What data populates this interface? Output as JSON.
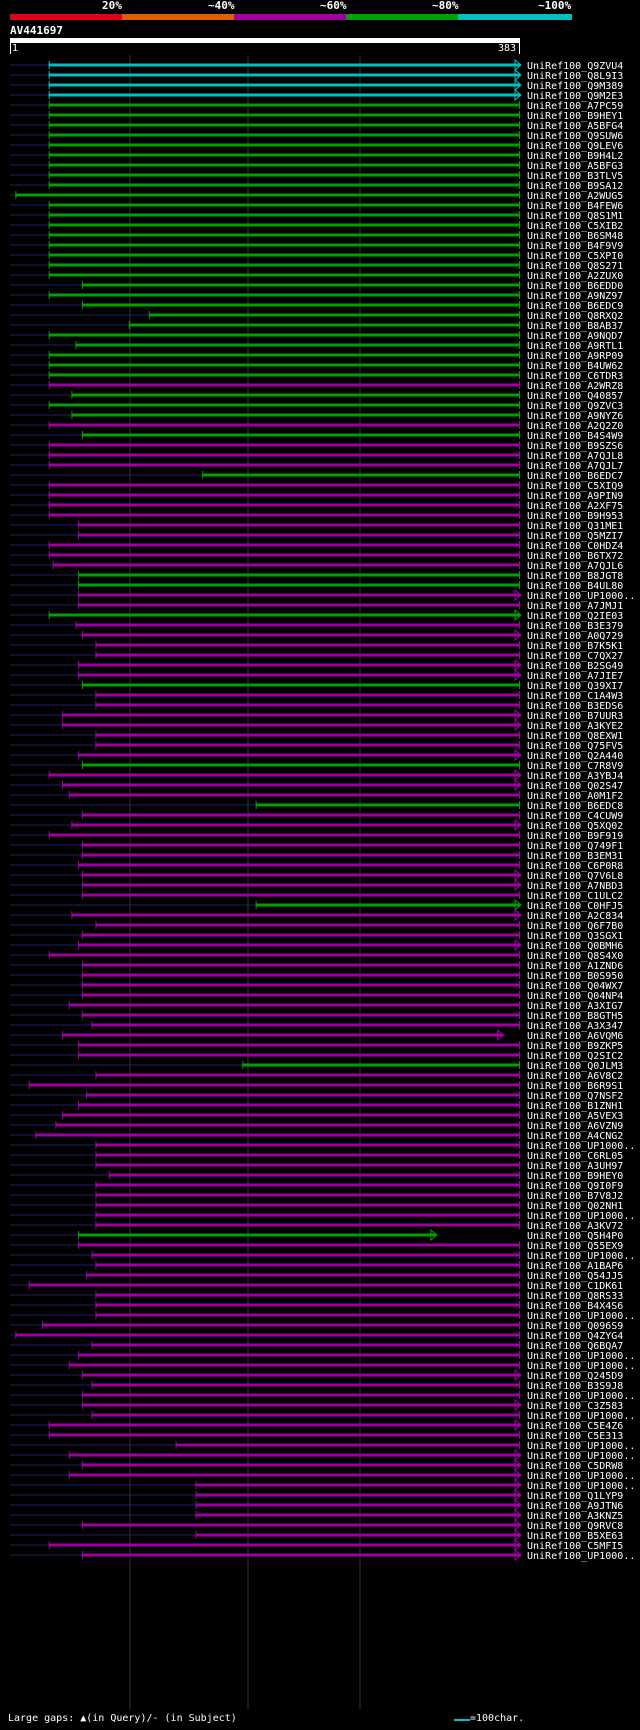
{
  "scale": {
    "labels": [
      "20%",
      "~40%",
      "~60%",
      "~80%",
      "~100%"
    ],
    "colors": [
      "#e0001a",
      "#e06000",
      "#a000a0",
      "#00a000",
      "#00c0c0"
    ]
  },
  "query": {
    "name": "AV441697",
    "start": "1",
    "end": "383",
    "length": 383
  },
  "hits": [
    {
      "name": "UniRef100_Q9ZVU4",
      "s": 30,
      "e": 383,
      "cls": 4,
      "arrow": 1
    },
    {
      "name": "UniRef100_Q8L9I3",
      "s": 30,
      "e": 383,
      "cls": 4,
      "arrow": 1
    },
    {
      "name": "UniRef100_Q9M389",
      "s": 30,
      "e": 383,
      "cls": 4,
      "arrow": 1
    },
    {
      "name": "UniRef100_Q9M2E3",
      "s": 30,
      "e": 383,
      "cls": 4,
      "arrow": 1
    },
    {
      "name": "UniRef100_A7PC59",
      "s": 30,
      "e": 383,
      "cls": 3,
      "arrow": 0
    },
    {
      "name": "UniRef100_B9HEY1",
      "s": 30,
      "e": 383,
      "cls": 3,
      "arrow": 0
    },
    {
      "name": "UniRef100_A5BFG4",
      "s": 30,
      "e": 383,
      "cls": 3,
      "arrow": 0
    },
    {
      "name": "UniRef100_Q9SUW6",
      "s": 30,
      "e": 383,
      "cls": 3,
      "arrow": 0
    },
    {
      "name": "UniRef100_Q9LEV6",
      "s": 30,
      "e": 383,
      "cls": 3,
      "arrow": 0
    },
    {
      "name": "UniRef100_B9H4L2",
      "s": 30,
      "e": 383,
      "cls": 3,
      "arrow": 0
    },
    {
      "name": "UniRef100_A5BFG3",
      "s": 30,
      "e": 383,
      "cls": 3,
      "arrow": 0
    },
    {
      "name": "UniRef100_B3TLV5",
      "s": 30,
      "e": 383,
      "cls": 3,
      "arrow": 0
    },
    {
      "name": "UniRef100_B9SA12",
      "s": 30,
      "e": 383,
      "cls": 3,
      "arrow": 0
    },
    {
      "name": "UniRef100_A2WUG5",
      "s": 5,
      "e": 383,
      "cls": 3,
      "arrow": 0
    },
    {
      "name": "UniRef100_B4FEW6",
      "s": 30,
      "e": 383,
      "cls": 3,
      "arrow": 0
    },
    {
      "name": "UniRef100_Q8S1M1",
      "s": 30,
      "e": 383,
      "cls": 3,
      "arrow": 0
    },
    {
      "name": "UniRef100_C5XIB2",
      "s": 30,
      "e": 383,
      "cls": 3,
      "arrow": 0
    },
    {
      "name": "UniRef100_B6SM48",
      "s": 30,
      "e": 383,
      "cls": 3,
      "arrow": 0
    },
    {
      "name": "UniRef100_B4F9V9",
      "s": 30,
      "e": 383,
      "cls": 3,
      "arrow": 0
    },
    {
      "name": "UniRef100_C5XPI0",
      "s": 30,
      "e": 383,
      "cls": 3,
      "arrow": 0
    },
    {
      "name": "UniRef100_Q8S271",
      "s": 30,
      "e": 383,
      "cls": 3,
      "arrow": 0
    },
    {
      "name": "UniRef100_A2ZUX0",
      "s": 30,
      "e": 383,
      "cls": 3,
      "arrow": 0
    },
    {
      "name": "UniRef100_B6EDD0",
      "s": 55,
      "e": 383,
      "cls": 3,
      "arrow": 0
    },
    {
      "name": "UniRef100_A9NZ97",
      "s": 30,
      "e": 383,
      "cls": 3,
      "arrow": 0
    },
    {
      "name": "UniRef100_B6EDC9",
      "s": 55,
      "e": 383,
      "cls": 3,
      "arrow": 0
    },
    {
      "name": "UniRef100_Q8RXQ2",
      "s": 105,
      "e": 383,
      "cls": 3,
      "arrow": 0
    },
    {
      "name": "UniRef100_B8AB37",
      "s": 90,
      "e": 383,
      "cls": 3,
      "arrow": 0
    },
    {
      "name": "UniRef100_A9NQD7",
      "s": 30,
      "e": 383,
      "cls": 3,
      "arrow": 0
    },
    {
      "name": "UniRef100_A9RTL1",
      "s": 50,
      "e": 383,
      "cls": 3,
      "arrow": 0
    },
    {
      "name": "UniRef100_A9RP09",
      "s": 30,
      "e": 383,
      "cls": 3,
      "arrow": 0
    },
    {
      "name": "UniRef100_B4UW62",
      "s": 30,
      "e": 383,
      "cls": 3,
      "arrow": 0
    },
    {
      "name": "UniRef100_C6TDR3",
      "s": 30,
      "e": 383,
      "cls": 3,
      "arrow": 0
    },
    {
      "name": "UniRef100_A2WRZ8",
      "s": 30,
      "e": 383,
      "cls": 2,
      "arrow": 0
    },
    {
      "name": "UniRef100_Q40857",
      "s": 47,
      "e": 383,
      "cls": 3,
      "arrow": 0
    },
    {
      "name": "UniRef100_Q9ZVC3",
      "s": 30,
      "e": 383,
      "cls": 3,
      "arrow": 0
    },
    {
      "name": "UniRef100_A9NYZ6",
      "s": 47,
      "e": 383,
      "cls": 3,
      "arrow": 0
    },
    {
      "name": "UniRef100_A2Q2Z0",
      "s": 30,
      "e": 383,
      "cls": 2,
      "arrow": 0
    },
    {
      "name": "UniRef100_B4S4W9",
      "s": 55,
      "e": 383,
      "cls": 3,
      "arrow": 0
    },
    {
      "name": "UniRef100_B9SZS6",
      "s": 30,
      "e": 383,
      "cls": 2,
      "arrow": 0
    },
    {
      "name": "UniRef100_A7QJL8",
      "s": 30,
      "e": 383,
      "cls": 2,
      "arrow": 0
    },
    {
      "name": "UniRef100_A7QJL7",
      "s": 30,
      "e": 383,
      "cls": 2,
      "arrow": 0
    },
    {
      "name": "UniRef100_B6EDC7",
      "s": 145,
      "e": 383,
      "cls": 3,
      "arrow": 0
    },
    {
      "name": "UniRef100_C5XIQ9",
      "s": 30,
      "e": 383,
      "cls": 2,
      "arrow": 0
    },
    {
      "name": "UniRef100_A9PIN9",
      "s": 30,
      "e": 383,
      "cls": 2,
      "arrow": 0
    },
    {
      "name": "UniRef100_A2XF75",
      "s": 30,
      "e": 383,
      "cls": 2,
      "arrow": 0
    },
    {
      "name": "UniRef100_B9H953",
      "s": 30,
      "e": 383,
      "cls": 2,
      "arrow": 0
    },
    {
      "name": "UniRef100_Q31ME1",
      "s": 52,
      "e": 383,
      "cls": 2,
      "arrow": 0
    },
    {
      "name": "UniRef100_Q5MZI7",
      "s": 52,
      "e": 383,
      "cls": 2,
      "arrow": 0
    },
    {
      "name": "UniRef100_C0HDZ4",
      "s": 30,
      "e": 383,
      "cls": 2,
      "arrow": 0
    },
    {
      "name": "UniRef100_B6TX72",
      "s": 30,
      "e": 383,
      "cls": 2,
      "arrow": 0
    },
    {
      "name": "UniRef100_A7QJL6",
      "s": 33,
      "e": 383,
      "cls": 2,
      "arrow": 0
    },
    {
      "name": "UniRef100_B8JGT8",
      "s": 52,
      "e": 383,
      "cls": 3,
      "arrow": 0
    },
    {
      "name": "UniRef100_B4UL80",
      "s": 52,
      "e": 383,
      "cls": 3,
      "arrow": 0
    },
    {
      "name": "UniRef100_UP1000..",
      "s": 52,
      "e": 383,
      "cls": 2,
      "arrow": 1
    },
    {
      "name": "UniRef100_A7JMJ1",
      "s": 52,
      "e": 383,
      "cls": 2,
      "arrow": 0
    },
    {
      "name": "UniRef100_Q2IE03",
      "s": 30,
      "e": 383,
      "cls": 3,
      "arrow": 1
    },
    {
      "name": "UniRef100_B3E379",
      "s": 50,
      "e": 383,
      "cls": 2,
      "arrow": 0
    },
    {
      "name": "UniRef100_A0Q729",
      "s": 55,
      "e": 383,
      "cls": 2,
      "arrow": 1
    },
    {
      "name": "UniRef100_B7K5K1",
      "s": 65,
      "e": 383,
      "cls": 2,
      "arrow": 0
    },
    {
      "name": "UniRef100_C7QX27",
      "s": 65,
      "e": 383,
      "cls": 2,
      "arrow": 0
    },
    {
      "name": "UniRef100_B2SG49",
      "s": 52,
      "e": 383,
      "cls": 2,
      "arrow": 1
    },
    {
      "name": "UniRef100_A7JIE7",
      "s": 52,
      "e": 383,
      "cls": 2,
      "arrow": 1
    },
    {
      "name": "UniRef100_Q39XI7",
      "s": 55,
      "e": 383,
      "cls": 3,
      "arrow": 0
    },
    {
      "name": "UniRef100_C1A4W3",
      "s": 65,
      "e": 383,
      "cls": 2,
      "arrow": 0
    },
    {
      "name": "UniRef100_B3EDS6",
      "s": 65,
      "e": 383,
      "cls": 2,
      "arrow": 0
    },
    {
      "name": "UniRef100_B7UUR3",
      "s": 40,
      "e": 383,
      "cls": 2,
      "arrow": 1
    },
    {
      "name": "UniRef100_A3KYE2",
      "s": 40,
      "e": 383,
      "cls": 2,
      "arrow": 1
    },
    {
      "name": "UniRef100_Q8EXW1",
      "s": 65,
      "e": 383,
      "cls": 2,
      "arrow": 0
    },
    {
      "name": "UniRef100_Q75FV5",
      "s": 65,
      "e": 383,
      "cls": 2,
      "arrow": 0
    },
    {
      "name": "UniRef100_Q2A440",
      "s": 52,
      "e": 383,
      "cls": 2,
      "arrow": 1
    },
    {
      "name": "UniRef100_C7R8V9",
      "s": 55,
      "e": 383,
      "cls": 3,
      "arrow": 0
    },
    {
      "name": "UniRef100_A3YBJ4",
      "s": 30,
      "e": 383,
      "cls": 2,
      "arrow": 1
    },
    {
      "name": "UniRef100_Q02S47",
      "s": 40,
      "e": 383,
      "cls": 2,
      "arrow": 1
    },
    {
      "name": "UniRef100_A0M1F2",
      "s": 45,
      "e": 383,
      "cls": 2,
      "arrow": 0
    },
    {
      "name": "UniRef100_B6EDC8",
      "s": 185,
      "e": 383,
      "cls": 3,
      "arrow": 0
    },
    {
      "name": "UniRef100_C4CUW9",
      "s": 55,
      "e": 383,
      "cls": 2,
      "arrow": 0
    },
    {
      "name": "UniRef100_Q5XQ02",
      "s": 47,
      "e": 383,
      "cls": 2,
      "arrow": 1
    },
    {
      "name": "UniRef100_B9F919",
      "s": 30,
      "e": 383,
      "cls": 2,
      "arrow": 0
    },
    {
      "name": "UniRef100_Q749F1",
      "s": 55,
      "e": 383,
      "cls": 2,
      "arrow": 0
    },
    {
      "name": "UniRef100_B3EM31",
      "s": 55,
      "e": 383,
      "cls": 2,
      "arrow": 0
    },
    {
      "name": "UniRef100_C6P0R8",
      "s": 52,
      "e": 383,
      "cls": 2,
      "arrow": 0
    },
    {
      "name": "UniRef100_Q7V6L8",
      "s": 55,
      "e": 383,
      "cls": 2,
      "arrow": 1
    },
    {
      "name": "UniRef100_A7NBD3",
      "s": 55,
      "e": 383,
      "cls": 2,
      "arrow": 1
    },
    {
      "name": "UniRef100_C1ULC2",
      "s": 55,
      "e": 383,
      "cls": 2,
      "arrow": 0
    },
    {
      "name": "UniRef100_C0HFJ5",
      "s": 185,
      "e": 383,
      "cls": 3,
      "arrow": 1
    },
    {
      "name": "UniRef100_A2C834",
      "s": 47,
      "e": 383,
      "cls": 2,
      "arrow": 1
    },
    {
      "name": "UniRef100_Q6F7B0",
      "s": 65,
      "e": 383,
      "cls": 2,
      "arrow": 0
    },
    {
      "name": "UniRef100_Q3SGX1",
      "s": 55,
      "e": 383,
      "cls": 2,
      "arrow": 0
    },
    {
      "name": "UniRef100_Q0BMH6",
      "s": 52,
      "e": 383,
      "cls": 2,
      "arrow": 1
    },
    {
      "name": "UniRef100_Q8S4X0",
      "s": 30,
      "e": 383,
      "cls": 2,
      "arrow": 0
    },
    {
      "name": "UniRef100_A1ZND6",
      "s": 55,
      "e": 383,
      "cls": 2,
      "arrow": 0
    },
    {
      "name": "UniRef100_B0S950",
      "s": 55,
      "e": 383,
      "cls": 2,
      "arrow": 0
    },
    {
      "name": "UniRef100_Q04WX7",
      "s": 55,
      "e": 383,
      "cls": 2,
      "arrow": 0
    },
    {
      "name": "UniRef100_Q04NP4",
      "s": 55,
      "e": 383,
      "cls": 2,
      "arrow": 0
    },
    {
      "name": "UniRef100_A3XIG7",
      "s": 45,
      "e": 383,
      "cls": 2,
      "arrow": 0
    },
    {
      "name": "UniRef100_B8GTH5",
      "s": 55,
      "e": 383,
      "cls": 2,
      "arrow": 0
    },
    {
      "name": "UniRef100_A3X347",
      "s": 62,
      "e": 383,
      "cls": 2,
      "arrow": 0
    },
    {
      "name": "UniRef100_A6VQM6",
      "s": 40,
      "e": 370,
      "cls": 2,
      "arrow": 1
    },
    {
      "name": "UniRef100_B9ZKP5",
      "s": 52,
      "e": 383,
      "cls": 2,
      "arrow": 0
    },
    {
      "name": "UniRef100_Q2SIC2",
      "s": 52,
      "e": 383,
      "cls": 2,
      "arrow": 0
    },
    {
      "name": "UniRef100_Q0JLM3",
      "s": 175,
      "e": 383,
      "cls": 3,
      "arrow": 0
    },
    {
      "name": "UniRef100_A6V8C2",
      "s": 65,
      "e": 383,
      "cls": 2,
      "arrow": 0
    },
    {
      "name": "UniRef100_B6R9S1",
      "s": 15,
      "e": 383,
      "cls": 2,
      "arrow": 0
    },
    {
      "name": "UniRef100_Q7NSF2",
      "s": 58,
      "e": 383,
      "cls": 2,
      "arrow": 0
    },
    {
      "name": "UniRef100_B1ZNH1",
      "s": 52,
      "e": 383,
      "cls": 2,
      "arrow": 0
    },
    {
      "name": "UniRef100_A5VEX3",
      "s": 40,
      "e": 383,
      "cls": 2,
      "arrow": 0
    },
    {
      "name": "UniRef100_A6VZN9",
      "s": 35,
      "e": 383,
      "cls": 2,
      "arrow": 0
    },
    {
      "name": "UniRef100_A4CNG2",
      "s": 20,
      "e": 383,
      "cls": 2,
      "arrow": 0
    },
    {
      "name": "UniRef100_UP1000..",
      "s": 65,
      "e": 383,
      "cls": 2,
      "arrow": 0
    },
    {
      "name": "UniRef100_C6RL05",
      "s": 65,
      "e": 383,
      "cls": 2,
      "arrow": 0
    },
    {
      "name": "UniRef100_A3UH97",
      "s": 65,
      "e": 383,
      "cls": 2,
      "arrow": 0
    },
    {
      "name": "UniRef100_B9HEY0",
      "s": 75,
      "e": 383,
      "cls": 2,
      "arrow": 0
    },
    {
      "name": "UniRef100_Q9I0F9",
      "s": 65,
      "e": 383,
      "cls": 2,
      "arrow": 0
    },
    {
      "name": "UniRef100_B7V8J2",
      "s": 65,
      "e": 383,
      "cls": 2,
      "arrow": 0
    },
    {
      "name": "UniRef100_Q02NH1",
      "s": 65,
      "e": 383,
      "cls": 2,
      "arrow": 0
    },
    {
      "name": "UniRef100_UP1000..",
      "s": 65,
      "e": 383,
      "cls": 2,
      "arrow": 0
    },
    {
      "name": "UniRef100_A3KV72",
      "s": 65,
      "e": 383,
      "cls": 2,
      "arrow": 0
    },
    {
      "name": "UniRef100_Q5H4P0",
      "s": 52,
      "e": 320,
      "cls": 3,
      "arrow": 1
    },
    {
      "name": "UniRef100_Q55EX9",
      "s": 52,
      "e": 383,
      "cls": 2,
      "arrow": 0
    },
    {
      "name": "UniRef100_UP1000..",
      "s": 62,
      "e": 383,
      "cls": 2,
      "arrow": 0
    },
    {
      "name": "UniRef100_A1BAP6",
      "s": 65,
      "e": 383,
      "cls": 2,
      "arrow": 0
    },
    {
      "name": "UniRef100_Q54JJ5",
      "s": 58,
      "e": 383,
      "cls": 2,
      "arrow": 0
    },
    {
      "name": "UniRef100_C1DK61",
      "s": 15,
      "e": 383,
      "cls": 2,
      "arrow": 0
    },
    {
      "name": "UniRef100_Q8RS33",
      "s": 65,
      "e": 383,
      "cls": 2,
      "arrow": 0
    },
    {
      "name": "UniRef100_B4X4S6",
      "s": 65,
      "e": 383,
      "cls": 2,
      "arrow": 0
    },
    {
      "name": "UniRef100_UP1000..",
      "s": 65,
      "e": 383,
      "cls": 2,
      "arrow": 0
    },
    {
      "name": "UniRef100_Q096S9",
      "s": 25,
      "e": 383,
      "cls": 2,
      "arrow": 0
    },
    {
      "name": "UniRef100_Q4ZYG4",
      "s": 5,
      "e": 383,
      "cls": 2,
      "arrow": 0
    },
    {
      "name": "UniRef100_Q6BQA7",
      "s": 62,
      "e": 383,
      "cls": 2,
      "arrow": 0
    },
    {
      "name": "UniRef100_UP1000..",
      "s": 52,
      "e": 383,
      "cls": 2,
      "arrow": 0
    },
    {
      "name": "UniRef100_UP1000..",
      "s": 45,
      "e": 383,
      "cls": 2,
      "arrow": 0
    },
    {
      "name": "UniRef100_Q245D9",
      "s": 55,
      "e": 383,
      "cls": 2,
      "arrow": 1
    },
    {
      "name": "UniRef100_B3S9J8",
      "s": 62,
      "e": 383,
      "cls": 2,
      "arrow": 0
    },
    {
      "name": "UniRef100_UP1000..",
      "s": 55,
      "e": 383,
      "cls": 2,
      "arrow": 0
    },
    {
      "name": "UniRef100_C3Z583",
      "s": 55,
      "e": 383,
      "cls": 2,
      "arrow": 1
    },
    {
      "name": "UniRef100_UP1000..",
      "s": 62,
      "e": 383,
      "cls": 2,
      "arrow": 0
    },
    {
      "name": "UniRef100_C5E4Z6",
      "s": 30,
      "e": 383,
      "cls": 2,
      "arrow": 1
    },
    {
      "name": "UniRef100_C5E313",
      "s": 30,
      "e": 383,
      "cls": 2,
      "arrow": 0
    },
    {
      "name": "UniRef100_UP1000..",
      "s": 125,
      "e": 383,
      "cls": 2,
      "arrow": 0
    },
    {
      "name": "UniRef100_UP1000..",
      "s": 45,
      "e": 383,
      "cls": 2,
      "arrow": 1
    },
    {
      "name": "UniRef100_C5DRW8",
      "s": 55,
      "e": 383,
      "cls": 2,
      "arrow": 1
    },
    {
      "name": "UniRef100_UP1000..",
      "s": 45,
      "e": 383,
      "cls": 2,
      "arrow": 1
    },
    {
      "name": "UniRef100_UP1000..",
      "s": 140,
      "e": 383,
      "cls": 2,
      "arrow": 1
    },
    {
      "name": "UniRef100_Q1LYP9",
      "s": 140,
      "e": 383,
      "cls": 2,
      "arrow": 1
    },
    {
      "name": "UniRef100_A9JTN6",
      "s": 140,
      "e": 383,
      "cls": 2,
      "arrow": 1
    },
    {
      "name": "UniRef100_A3KNZ5",
      "s": 140,
      "e": 383,
      "cls": 2,
      "arrow": 1
    },
    {
      "name": "UniRef100_Q9RVC8",
      "s": 55,
      "e": 383,
      "cls": 2,
      "arrow": 1
    },
    {
      "name": "UniRef100_B5XE63",
      "s": 140,
      "e": 383,
      "cls": 2,
      "arrow": 1
    },
    {
      "name": "UniRef100_C5MFI5",
      "s": 30,
      "e": 383,
      "cls": 2,
      "arrow": 1
    },
    {
      "name": "UniRef100_UP1000..",
      "s": 55,
      "e": 383,
      "cls": 2,
      "arrow": 1
    }
  ],
  "footer": {
    "gaps_text": "Large gaps: ▲(in Query)/- (in Subject)",
    "legend_text": "=100char."
  }
}
